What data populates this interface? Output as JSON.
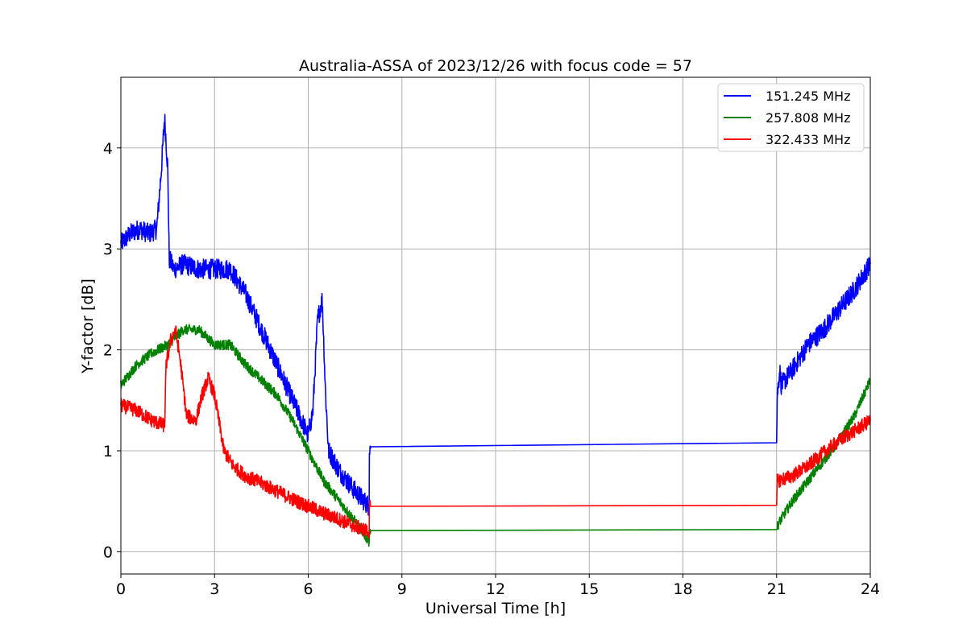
{
  "chart_data": {
    "type": "line",
    "title": "Australia-ASSA of 2023/12/26 with focus code = 57",
    "xlabel": "Universal Time [h]",
    "ylabel": "Y-factor [dB]",
    "xlim": [
      0,
      24
    ],
    "ylim": [
      -0.22,
      4.7
    ],
    "xticks": [
      "0",
      "3",
      "6",
      "9",
      "12",
      "15",
      "18",
      "21",
      "24"
    ],
    "yticks": [
      "0",
      "1",
      "2",
      "3",
      "4"
    ],
    "grid": true,
    "legend_position": "top-right",
    "series": [
      {
        "name": "151.245 MHz",
        "color": "#0000ff",
        "noise": 0.1,
        "x": [
          0,
          0.3,
          0.6,
          0.9,
          1.15,
          1.3,
          1.4,
          1.5,
          1.55,
          1.7,
          2.0,
          2.5,
          3.0,
          3.5,
          4.0,
          4.5,
          5.0,
          5.5,
          6.0,
          6.15,
          6.3,
          6.45,
          6.55,
          6.65,
          7.0,
          7.5,
          7.95,
          7.96,
          8.0,
          21.0,
          21.02,
          21.1,
          21.15,
          21.5,
          22.0,
          22.5,
          23.0,
          23.5,
          24.0
        ],
        "y": [
          3.05,
          3.15,
          3.2,
          3.15,
          3.2,
          3.8,
          4.3,
          3.8,
          2.9,
          2.8,
          2.85,
          2.8,
          2.8,
          2.8,
          2.55,
          2.2,
          1.85,
          1.5,
          1.15,
          1.4,
          2.3,
          2.5,
          1.6,
          1.0,
          0.8,
          0.6,
          0.45,
          1.04,
          1.04,
          1.08,
          1.55,
          1.8,
          1.65,
          1.8,
          2.05,
          2.2,
          2.4,
          2.6,
          2.85
        ]
      },
      {
        "name": "257.808 MHz",
        "color": "#008000",
        "noise": 0.05,
        "x": [
          0,
          0.5,
          1.0,
          1.5,
          2.0,
          2.5,
          3.0,
          3.5,
          4.0,
          4.5,
          5.0,
          5.5,
          6.0,
          6.5,
          7.0,
          7.5,
          7.95,
          7.96,
          8.0,
          21.0,
          21.02,
          21.1,
          21.5,
          22.0,
          22.5,
          23.0,
          23.5,
          24.0
        ],
        "y": [
          1.65,
          1.85,
          1.97,
          2.05,
          2.2,
          2.2,
          2.05,
          2.05,
          1.85,
          1.7,
          1.55,
          1.3,
          1.0,
          0.7,
          0.5,
          0.3,
          0.1,
          0.21,
          0.21,
          0.22,
          0.25,
          0.3,
          0.5,
          0.7,
          0.9,
          1.1,
          1.35,
          1.7
        ]
      },
      {
        "name": "322.433 MHz",
        "color": "#ff0000",
        "noise": 0.07,
        "x": [
          0,
          0.5,
          1.0,
          1.4,
          1.45,
          1.6,
          1.75,
          1.9,
          2.1,
          2.4,
          2.6,
          2.8,
          3.0,
          3.3,
          3.6,
          4.0,
          4.5,
          5.0,
          5.5,
          6.0,
          6.5,
          7.0,
          7.5,
          7.95,
          7.96,
          8.0,
          21.0,
          21.02,
          21.5,
          22.0,
          22.5,
          23.0,
          23.5,
          24.0
        ],
        "y": [
          1.45,
          1.4,
          1.3,
          1.25,
          1.85,
          2.1,
          2.2,
          1.9,
          1.35,
          1.3,
          1.55,
          1.72,
          1.55,
          1.0,
          0.85,
          0.75,
          0.68,
          0.6,
          0.52,
          0.45,
          0.38,
          0.32,
          0.25,
          0.2,
          0.45,
          0.45,
          0.46,
          0.7,
          0.75,
          0.85,
          0.98,
          1.1,
          1.2,
          1.3
        ]
      }
    ]
  }
}
